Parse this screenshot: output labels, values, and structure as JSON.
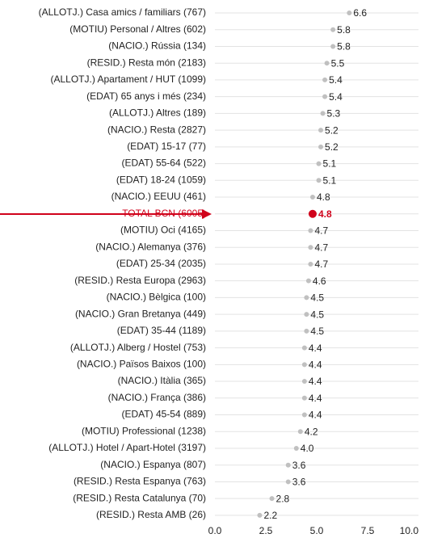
{
  "chart_data": {
    "type": "dot",
    "categories": [
      "(ALLOTJ.) Casa amics / familiars (767)",
      "(MOTIU) Personal / Altres (602)",
      "(NACIO.) Rússia (134)",
      "(RESID.) Resta món (2183)",
      "(ALLOTJ.) Apartament / HUT (1099)",
      "(EDAT) 65 anys i més (234)",
      "(ALLOTJ.) Altres (189)",
      "(NACIO.) Resta (2827)",
      "(EDAT) 15-17 (77)",
      "(EDAT) 55-64 (522)",
      "(EDAT) 18-24 (1059)",
      "(NACIO.) EEUU (461)",
      "TOTAL BCN (6005)",
      "(MOTIU) Oci (4165)",
      "(NACIO.) Alemanya (376)",
      "(EDAT) 25-34 (2035)",
      "(RESID.) Resta Europa (2963)",
      "(NACIO.) Bèlgica (100)",
      "(NACIO.) Gran Bretanya (449)",
      "(EDAT) 35-44 (1189)",
      "(ALLOTJ.) Alberg / Hostel (753)",
      "(NACIO.) Països Baixos (100)",
      "(NACIO.) Itàlia (365)",
      "(NACIO.) França (386)",
      "(EDAT) 45-54 (889)",
      "(MOTIU) Professional (1238)",
      "(ALLOTJ.) Hotel / Apart-Hotel (3197)",
      "(NACIO.) Espanya (807)",
      "(RESID.) Resta Espanya (763)",
      "(RESID.) Resta Catalunya (70)",
      "(RESID.) Resta AMB (26)"
    ],
    "values": [
      6.6,
      5.8,
      5.8,
      5.5,
      5.4,
      5.4,
      5.3,
      5.2,
      5.2,
      5.1,
      5.1,
      4.8,
      4.8,
      4.7,
      4.7,
      4.7,
      4.6,
      4.5,
      4.5,
      4.5,
      4.4,
      4.4,
      4.4,
      4.4,
      4.4,
      4.2,
      4.0,
      3.6,
      3.6,
      2.8,
      2.2
    ],
    "value_labels": [
      "6.6",
      "5.8",
      "5.8",
      "5.5",
      "5.4",
      "5.4",
      "5.3",
      "5.2",
      "5.2",
      "5.1",
      "5.1",
      "4.8",
      "4.8",
      "4.7",
      "4.7",
      "4.7",
      "4.6",
      "4.5",
      "4.5",
      "4.5",
      "4.4",
      "4.4",
      "4.4",
      "4.4",
      "4.4",
      "4.2",
      "4.0",
      "3.6",
      "3.6",
      "2.8",
      "2.2"
    ],
    "point_colors": [
      "#c0c0c0",
      "#c0c0c0",
      "#c0c0c0",
      "#c0c0c0",
      "#c0c0c0",
      "#c0c0c0",
      "#c0c0c0",
      "#c0c0c0",
      "#c0c0c0",
      "#c0c0c0",
      "#c0c0c0",
      "#c0c0c0",
      "#d0021b",
      "#c0c0c0",
      "#c0c0c0",
      "#c0c0c0",
      "#c0c0c0",
      "#c0c0c0",
      "#c0c0c0",
      "#c0c0c0",
      "#c0c0c0",
      "#c0c0c0",
      "#c0c0c0",
      "#c0c0c0",
      "#c0c0c0",
      "#c0c0c0",
      "#c0c0c0",
      "#c0c0c0",
      "#c0c0c0",
      "#c0c0c0",
      "#c0c0c0"
    ],
    "xlim": [
      0,
      10
    ],
    "xticks": [
      {
        "value": 0,
        "label": "0.0"
      },
      {
        "value": 2.5,
        "label": "2.5"
      },
      {
        "value": 5,
        "label": "5.0"
      },
      {
        "value": 7.5,
        "label": "7.5"
      },
      {
        "value": 10,
        "label": "10.0"
      }
    ]
  }
}
